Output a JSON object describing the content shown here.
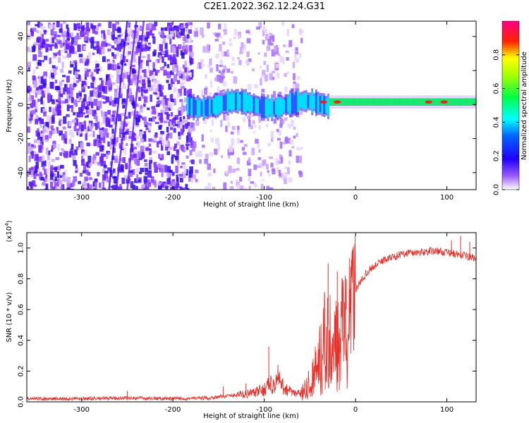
{
  "page": {
    "title": "C2E1.2022.362.12.24.G31"
  },
  "chart_data": [
    {
      "type": "heatmap",
      "title": "C2E1.2022.362.12.24.G31",
      "xlabel": "Height of straight line (km)",
      "ylabel": "Frequency (Hz)",
      "xlim": [
        -360,
        132
      ],
      "ylim": [
        -50,
        49
      ],
      "xticks": [
        -300,
        -200,
        -100,
        0,
        100
      ],
      "xtick_labels": [
        "-300",
        "-200",
        "-100",
        "0",
        "100"
      ],
      "yticks": [
        -40,
        -20,
        0,
        20,
        40
      ],
      "ytick_labels": [
        "-40",
        "-20",
        "0",
        "20",
        "40"
      ],
      "grid": false,
      "colorbar": {
        "label": "Normalized spectral amplitude",
        "range": [
          0,
          1
        ],
        "ticks": [
          0.0,
          0.2,
          0.4,
          0.6,
          0.8
        ],
        "tick_labels": [
          "0.0",
          "0.2",
          "0.4",
          "0.6",
          "0.8"
        ],
        "colors": [
          "#ffffff",
          "#8800ff",
          "#0000ff",
          "#00ffff",
          "#00ff00",
          "#ffff00",
          "#ff0000",
          "#ff0088"
        ]
      },
      "features": {
        "noise_region_x": [
          -360,
          -120
        ],
        "central_band_freq_hz": 0,
        "central_band_x": [
          -185,
          132
        ],
        "strong_peak_x": [
          -20,
          -35,
          80,
          97
        ]
      }
    },
    {
      "type": "line",
      "xlabel": "Height of straight line (km)",
      "ylabel": "SNR (10 * v/v)",
      "scale_note": "(x10",
      "scale_exponent": "4",
      "xlim": [
        -360,
        132
      ],
      "ylim": [
        0,
        1.1
      ],
      "xticks": [
        -300,
        -200,
        -100,
        0,
        100
      ],
      "xtick_labels": [
        "-300",
        "-200",
        "-100",
        "0",
        "100"
      ],
      "yticks": [
        0.0,
        0.2,
        0.4,
        0.6,
        0.8,
        1.0
      ],
      "ytick_labels": [
        "0.0",
        "0.2",
        "0.4",
        "0.6",
        "0.8",
        "1.0"
      ],
      "grid": false,
      "line_color": "#e8302b",
      "series": [
        {
          "x": [
            -360,
            -300,
            -250,
            -200,
            -160,
            -140,
            -120,
            -110,
            -100,
            -95,
            -90,
            -85,
            -80,
            -75,
            -70,
            -65,
            -60,
            -55,
            -50,
            -45,
            -40,
            -35,
            -30,
            -25,
            -20,
            -15,
            -10,
            -5,
            0,
            5,
            10,
            15,
            20,
            25,
            30,
            40,
            50,
            60,
            70,
            80,
            90,
            100,
            110,
            120,
            132
          ],
          "values": [
            0.02,
            0.02,
            0.025,
            0.02,
            0.025,
            0.04,
            0.05,
            0.06,
            0.08,
            0.12,
            0.1,
            0.15,
            0.1,
            0.08,
            0.06,
            0.05,
            0.06,
            0.1,
            0.15,
            0.22,
            0.3,
            0.45,
            0.5,
            0.4,
            0.45,
            0.55,
            0.6,
            0.65,
            0.72,
            0.78,
            0.82,
            0.86,
            0.88,
            0.9,
            0.92,
            0.94,
            0.96,
            0.97,
            0.97,
            0.98,
            0.98,
            0.97,
            0.96,
            0.95,
            0.93
          ]
        }
      ],
      "spikes": [
        {
          "x": -250,
          "y": 0.07
        },
        {
          "x": -145,
          "y": 0.1
        },
        {
          "x": -120,
          "y": 0.12
        },
        {
          "x": -95,
          "y": 0.36
        },
        {
          "x": -85,
          "y": 0.24
        },
        {
          "x": -30,
          "y": 0.9
        },
        {
          "x": -20,
          "y": 0.85
        },
        {
          "x": -10,
          "y": 0.8
        },
        {
          "x": 105,
          "y": 1.05
        },
        {
          "x": 115,
          "y": 1.08
        },
        {
          "x": 125,
          "y": 1.04
        }
      ]
    }
  ]
}
